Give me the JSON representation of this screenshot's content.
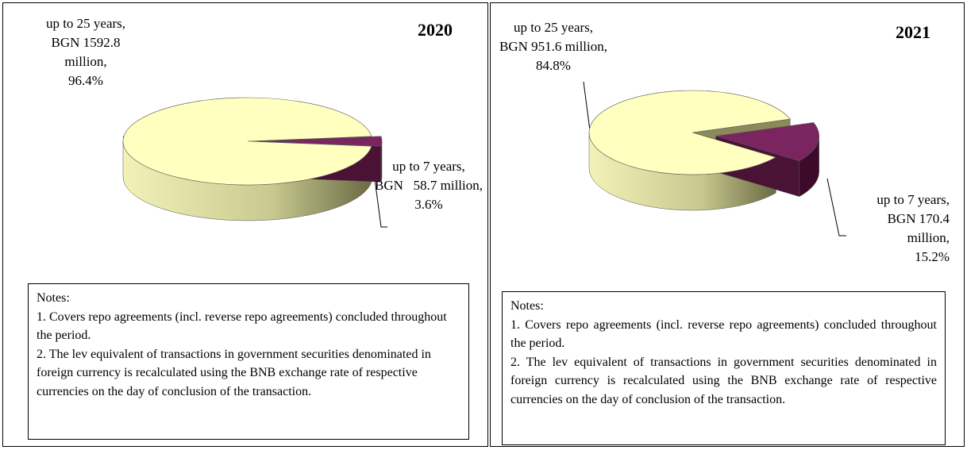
{
  "chart_data": [
    {
      "type": "pie3d",
      "title": "2020",
      "values": [
        96.4,
        3.6
      ],
      "value_labels": [
        [
          "up to 25 years,",
          "BGN 1592.8",
          "million,",
          "96.4%"
        ],
        [
          "up to 7 years,",
          "BGN   58.7 million,",
          "3.6%"
        ]
      ],
      "colors": [
        "#ffffc0",
        "#7b2560"
      ],
      "notes": [
        "Notes:",
        "1. Covers repo agreements (incl. reverse repo agreements) concluded throughout the period.",
        "2. The lev equivalent of transactions in government securities denominated in foreign currency is recalculated using the BNB exchange rate of respective currencies on the day of conclusion of the transaction."
      ]
    },
    {
      "type": "pie3d",
      "title": "2021",
      "values": [
        84.8,
        15.2
      ],
      "value_labels": [
        [
          "up to 25 years,",
          "BGN 951.6 million,",
          "84.8%"
        ],
        [
          "up to 7 years,",
          "BGN 170.4",
          "million,",
          "15.2%"
        ]
      ],
      "colors": [
        "#ffffc0",
        "#7b2560"
      ],
      "notes": [
        "Notes:",
        "1. Covers repo agreements (incl. reverse repo agreements) concluded throughout the period.",
        "2. The lev equivalent of transactions in government securities denominated in foreign currency is recalculated using the BNB exchange rate of respective currencies on the day of conclusion of the transaction."
      ]
    }
  ]
}
